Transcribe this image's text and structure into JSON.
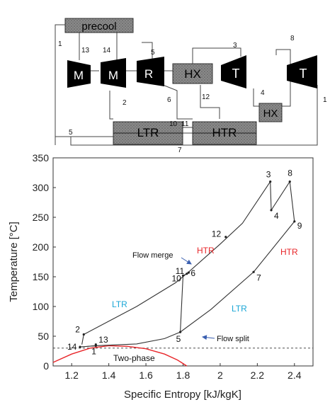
{
  "schematic": {
    "components": {
      "precool": "precool",
      "m1": "M",
      "m2": "M",
      "r": "R",
      "hx1": "HX",
      "t1": "T",
      "hx2": "HX",
      "t2": "T",
      "ltr": "LTR",
      "htr": "HTR"
    },
    "stream_numbers": [
      "1",
      "13",
      "14",
      "5",
      "3",
      "8",
      "2",
      "6",
      "12",
      "4",
      "10",
      "11",
      "5",
      "7",
      "1"
    ]
  },
  "chart_data": {
    "type": "line",
    "xlabel": "Specific Entropy [kJ/kgK]",
    "ylabel": "Temperature [°C]",
    "xlim": [
      1.1,
      2.5
    ],
    "ylim": [
      0,
      350
    ],
    "xticks": [
      "1.2",
      "1.4",
      "1.6",
      "1.8",
      "2",
      "2.2",
      "2.4"
    ],
    "yticks": [
      "0",
      "50",
      "100",
      "150",
      "200",
      "250",
      "300",
      "350"
    ],
    "series": [
      {
        "name": "",
        "points": [
          [
            1.255,
            36
          ],
          [
            1.265,
            53
          ],
          [
            1.55,
            100
          ],
          [
            1.76,
            140
          ],
          [
            1.83,
            158
          ],
          [
            2.0,
            205
          ],
          [
            2.12,
            240
          ],
          [
            2.27,
            310
          ]
        ]
      },
      {
        "name": "",
        "points": [
          [
            2.27,
            310
          ],
          [
            2.275,
            262
          ],
          [
            2.375,
            310
          ],
          [
            2.4,
            243
          ]
        ]
      },
      {
        "name": "",
        "points": [
          [
            1.8,
            152
          ],
          [
            1.82,
            155
          ],
          [
            1.83,
            157
          ]
        ]
      },
      {
        "name": "",
        "points": [
          [
            1.785,
            57
          ],
          [
            1.8,
            152
          ]
        ]
      },
      {
        "name": "",
        "points": [
          [
            1.245,
            32
          ],
          [
            1.33,
            34
          ],
          [
            1.55,
            37
          ],
          [
            1.7,
            46
          ],
          [
            1.785,
            57
          ],
          [
            1.95,
            95
          ],
          [
            2.18,
            158
          ],
          [
            2.4,
            243
          ]
        ]
      },
      {
        "name": "",
        "points": [
          [
            1.245,
            32
          ],
          [
            1.33,
            34
          ]
        ]
      }
    ],
    "saturation_dome": [
      [
        1.1,
        6
      ],
      [
        1.2,
        20
      ],
      [
        1.3,
        30
      ],
      [
        1.4,
        34
      ],
      [
        1.5,
        33
      ],
      [
        1.6,
        29
      ],
      [
        1.7,
        20
      ],
      [
        1.77,
        10
      ],
      [
        1.82,
        0
      ]
    ],
    "dashed_line_y": 30,
    "state_points": [
      {
        "label": "1",
        "x": 1.33,
        "y": 34
      },
      {
        "label": "2",
        "x": 1.265,
        "y": 53
      },
      {
        "label": "3",
        "x": 2.27,
        "y": 310
      },
      {
        "label": "4",
        "x": 2.275,
        "y": 262
      },
      {
        "label": "5",
        "x": 1.785,
        "y": 57
      },
      {
        "label": "6",
        "x": 1.83,
        "y": 157
      },
      {
        "label": "7",
        "x": 2.18,
        "y": 158
      },
      {
        "label": "8",
        "x": 2.375,
        "y": 310
      },
      {
        "label": "9",
        "x": 2.4,
        "y": 243
      },
      {
        "label": "10",
        "x": 1.8,
        "y": 152
      },
      {
        "label": "11",
        "x": 1.82,
        "y": 155
      },
      {
        "label": "12",
        "x": 2.03,
        "y": 217
      },
      {
        "label": "13",
        "x": 1.33,
        "y": 36
      },
      {
        "label": "14",
        "x": 1.245,
        "y": 32
      }
    ],
    "annotations": {
      "ltr_left": "LTR",
      "ltr_right": "LTR",
      "htr_left": "HTR",
      "htr_right": "HTR",
      "flow_merge": "Flow merge",
      "flow_split": "Flow split",
      "two_phase": "Two-phase"
    },
    "colors": {
      "ltr": "#1aa6d6",
      "htr": "#e8262a",
      "dome": "#e8262a",
      "line": "#333333"
    }
  }
}
